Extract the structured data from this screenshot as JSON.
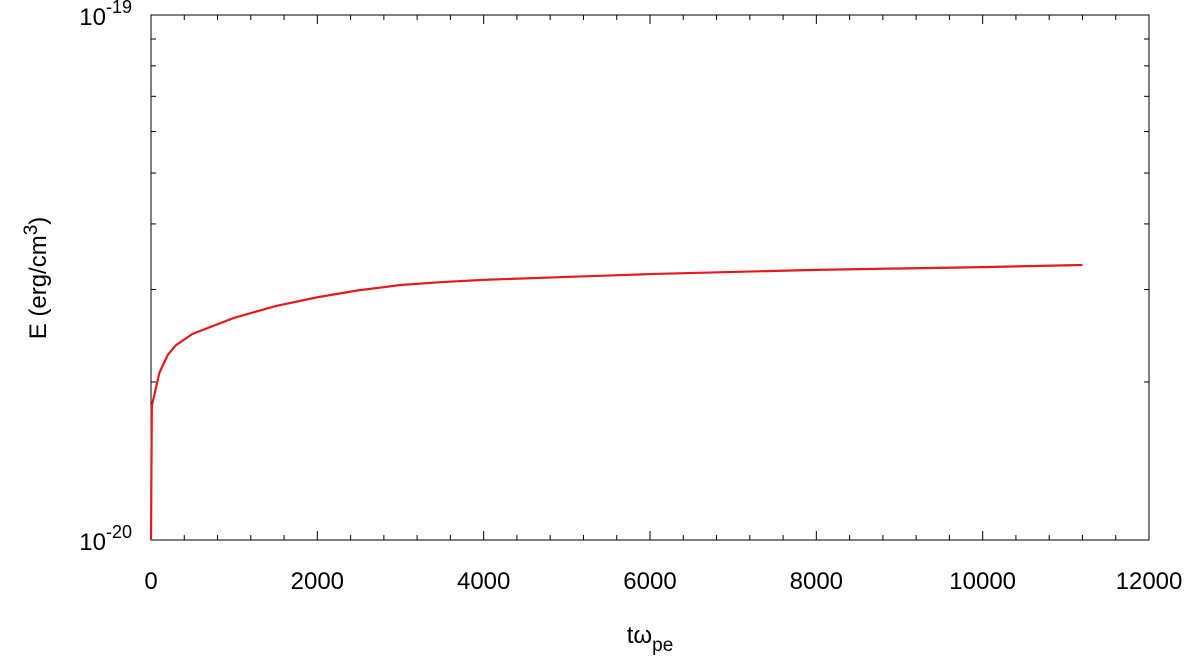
{
  "chart_data": {
    "type": "line",
    "x_label": {
      "text": "tω",
      "sub": "pe"
    },
    "y_label": {
      "text": "E (erg/cm",
      "sup": "3",
      "tail": ")"
    },
    "x": [
      0,
      10,
      50,
      100,
      200,
      300,
      500,
      1000,
      1500,
      2000,
      2500,
      3000,
      3500,
      4000,
      5000,
      6000,
      7000,
      8000,
      9000,
      10000,
      11200
    ],
    "series": [
      {
        "color": "#e41a1c",
        "values": [
          1e-20,
          1.8e-20,
          1.92e-20,
          2.08e-20,
          2.25e-20,
          2.35e-20,
          2.47e-20,
          2.65e-20,
          2.79e-20,
          2.9e-20,
          2.99e-20,
          3.06e-20,
          3.1e-20,
          3.13e-20,
          3.17e-20,
          3.21e-20,
          3.24e-20,
          3.27e-20,
          3.29e-20,
          3.31e-20,
          3.34e-20
        ]
      }
    ],
    "xlim": [
      0,
      12000
    ],
    "xticks": [
      0,
      2000,
      4000,
      6000,
      8000,
      10000,
      12000
    ],
    "xminor_ticks": [
      400,
      800,
      1200,
      1600,
      2400,
      2800,
      3200,
      3600,
      4400,
      4800,
      5200,
      5600,
      6400,
      6800,
      7200,
      7600,
      8400,
      8800,
      9200,
      9600,
      10400,
      10800,
      11200,
      11600
    ],
    "ylim": [
      1e-20,
      1e-19
    ],
    "log_y": true,
    "yticks": [
      {
        "value": 1e-20,
        "label": "10",
        "exponent": "-20"
      },
      {
        "value": 1e-19,
        "label": "10",
        "exponent": "-19"
      }
    ],
    "yminor_ticks": [
      2e-20,
      3e-20,
      4e-20,
      5e-20,
      6e-20,
      7e-20,
      8e-20,
      9e-20
    ]
  }
}
